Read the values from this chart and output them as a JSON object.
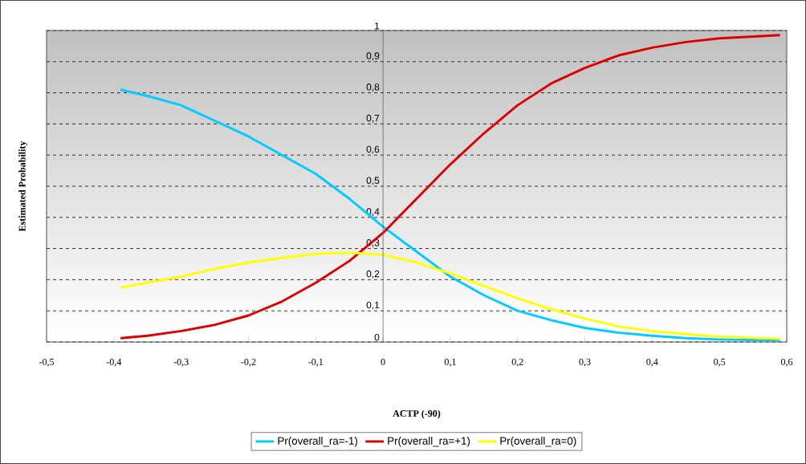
{
  "chart_data": {
    "type": "line",
    "xlabel": "ACTP (-90)",
    "ylabel": "Estimated Probability",
    "xlim": [
      -0.5,
      0.6
    ],
    "ylim": [
      0,
      1
    ],
    "xticks": [
      {
        "value": -0.5,
        "label": "-0,5"
      },
      {
        "value": -0.4,
        "label": "-0,4"
      },
      {
        "value": -0.3,
        "label": "-0,3"
      },
      {
        "value": -0.2,
        "label": "-0,2"
      },
      {
        "value": -0.1,
        "label": "-0,1"
      },
      0,
      {
        "value": 0.1,
        "label": "0,1"
      },
      {
        "value": 0.2,
        "label": "0,2"
      },
      {
        "value": 0.3,
        "label": "0,3"
      },
      {
        "value": 0.4,
        "label": "0,4"
      },
      {
        "value": 0.5,
        "label": "0,5"
      },
      {
        "value": 0.6,
        "label": "0,6"
      }
    ],
    "yticks": [
      0,
      {
        "value": 0.1,
        "label": "0,1"
      },
      {
        "value": 0.2,
        "label": "0,2"
      },
      {
        "value": 0.3,
        "label": "0,3"
      },
      {
        "value": 0.4,
        "label": "0,4"
      },
      {
        "value": 0.5,
        "label": "0,5"
      },
      {
        "value": 0.6,
        "label": "0,6"
      },
      {
        "value": 0.7,
        "label": "0,7"
      },
      {
        "value": 0.8,
        "label": "0,8"
      },
      {
        "value": 0.9,
        "label": "0,9"
      },
      1
    ],
    "x": [
      -0.39,
      -0.35,
      -0.3,
      -0.25,
      -0.2,
      -0.15,
      -0.1,
      -0.05,
      0,
      0.05,
      0.1,
      0.15,
      0.2,
      0.25,
      0.3,
      0.35,
      0.4,
      0.45,
      0.5,
      0.59
    ],
    "grid": "y",
    "legend": "bottom",
    "marker": "none",
    "line_style": "solid",
    "series": [
      {
        "name": "Pr(overall_ra=-1)",
        "color": "#00ccff",
        "values": [
          0.81,
          0.79,
          0.76,
          0.71,
          0.66,
          0.6,
          0.54,
          0.46,
          0.37,
          0.29,
          0.21,
          0.15,
          0.1,
          0.07,
          0.045,
          0.03,
          0.02,
          0.012,
          0.008,
          0.005
        ]
      },
      {
        "name": "Pr(overall_ra=+1)",
        "color": "#dd0000",
        "values": [
          0.012,
          0.02,
          0.035,
          0.055,
          0.085,
          0.13,
          0.19,
          0.26,
          0.35,
          0.46,
          0.57,
          0.67,
          0.76,
          0.83,
          0.88,
          0.92,
          0.945,
          0.963,
          0.975,
          0.985
        ]
      },
      {
        "name": "Pr(overall_ra=0)",
        "color": "#ffff00",
        "values": [
          0.175,
          0.19,
          0.21,
          0.235,
          0.255,
          0.27,
          0.283,
          0.287,
          0.28,
          0.255,
          0.22,
          0.18,
          0.14,
          0.105,
          0.075,
          0.05,
          0.035,
          0.025,
          0.017,
          0.01
        ]
      }
    ]
  }
}
